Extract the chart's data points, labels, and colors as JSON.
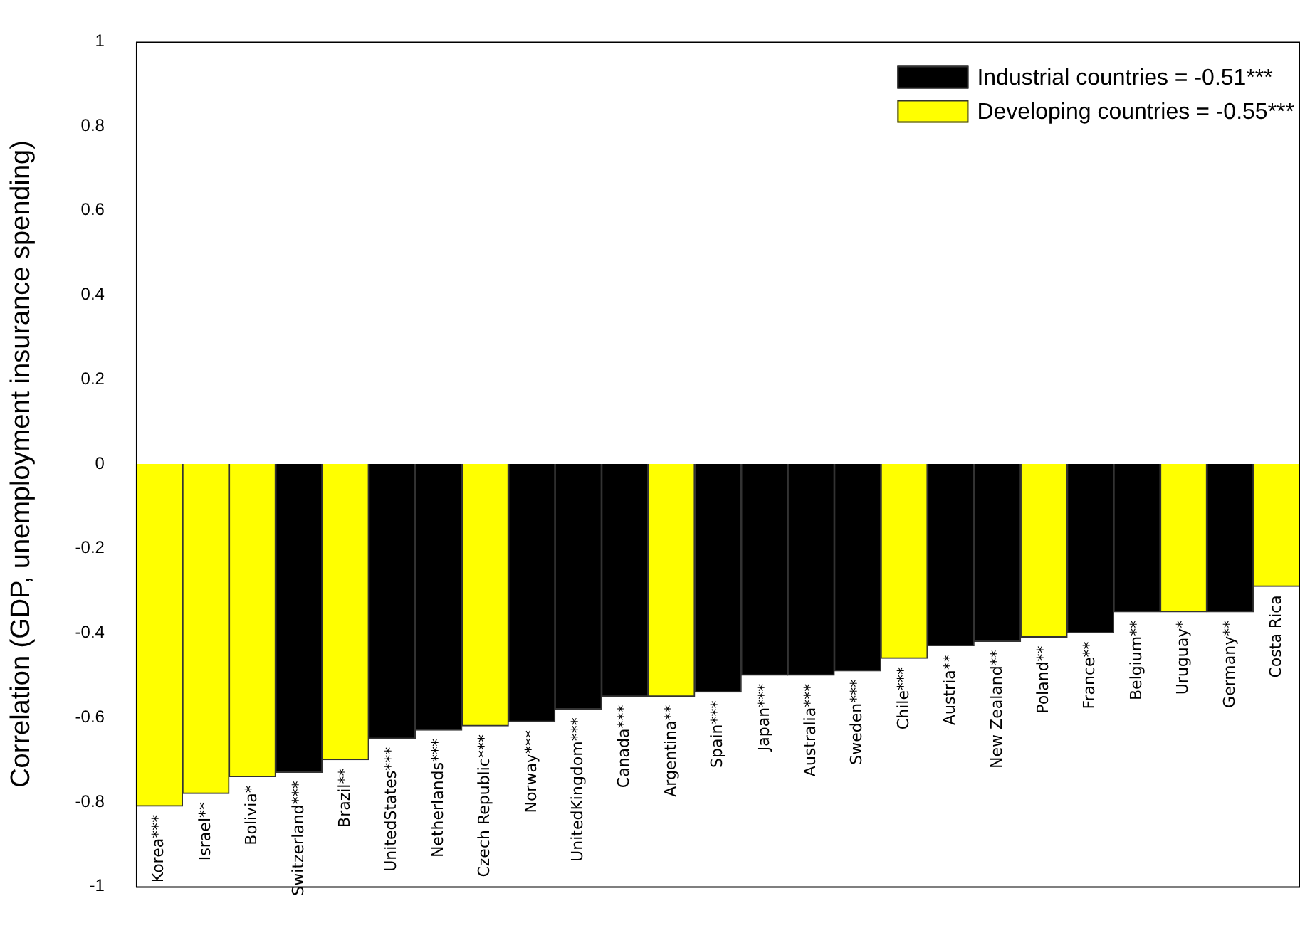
{
  "chart_data": {
    "type": "bar",
    "ylabel": "Correlation (GDP, unemployment insurance spending)",
    "categories": [
      "Korea***",
      "Israel**",
      "Bolivia*",
      "Switzerland***",
      "Brazil**",
      "UnitedStates***",
      "Netherlands***",
      "Czech Republic***",
      "Norway***",
      "UnitedKingdom***",
      "Canada***",
      "Argentina**",
      "Spain***",
      "Japan***",
      "Australia***",
      "Sweden***",
      "Chile***",
      "Austria**",
      "New Zealand**",
      "Poland**",
      "France**",
      "Belgium**",
      "Uruguay*",
      "Germany**",
      "Costa Rica"
    ],
    "series": [
      {
        "name": "Industrial countries = -0.51***",
        "color": "#000000",
        "values": [
          null,
          null,
          null,
          -0.73,
          null,
          -0.65,
          -0.63,
          null,
          -0.61,
          -0.58,
          -0.55,
          null,
          -0.54,
          -0.5,
          -0.5,
          -0.49,
          null,
          -0.43,
          -0.42,
          null,
          -0.4,
          -0.35,
          null,
          -0.35,
          null
        ]
      },
      {
        "name": "Developing countries = -0.55***",
        "color": "#ffff00",
        "values": [
          -0.81,
          -0.78,
          -0.74,
          null,
          -0.7,
          null,
          null,
          -0.62,
          null,
          null,
          null,
          -0.55,
          null,
          null,
          null,
          null,
          -0.46,
          null,
          null,
          -0.41,
          null,
          null,
          -0.35,
          null,
          -0.29
        ]
      }
    ],
    "ylim": [
      -1,
      1
    ],
    "yticks": [
      1,
      0.8,
      0.6,
      0.4,
      0.2,
      0,
      -0.2,
      -0.4,
      -0.6,
      -0.8,
      -1
    ],
    "grid": false,
    "legend": "top right"
  }
}
